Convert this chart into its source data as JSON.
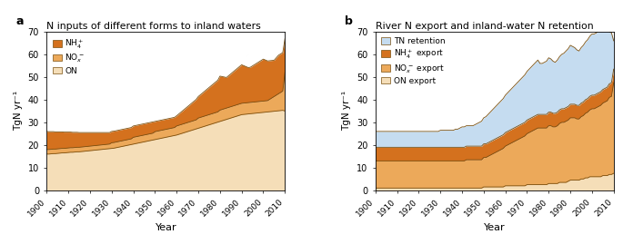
{
  "years": [
    1900,
    1901,
    1902,
    1903,
    1904,
    1905,
    1906,
    1907,
    1908,
    1909,
    1910,
    1911,
    1912,
    1913,
    1914,
    1915,
    1916,
    1917,
    1918,
    1919,
    1920,
    1921,
    1922,
    1923,
    1924,
    1925,
    1926,
    1927,
    1928,
    1929,
    1930,
    1931,
    1932,
    1933,
    1934,
    1935,
    1936,
    1937,
    1938,
    1939,
    1940,
    1941,
    1942,
    1943,
    1944,
    1945,
    1946,
    1947,
    1948,
    1949,
    1950,
    1951,
    1952,
    1953,
    1954,
    1955,
    1956,
    1957,
    1958,
    1959,
    1960,
    1961,
    1962,
    1963,
    1964,
    1965,
    1966,
    1967,
    1968,
    1969,
    1970,
    1971,
    1972,
    1973,
    1974,
    1975,
    1976,
    1977,
    1978,
    1979,
    1980,
    1981,
    1982,
    1983,
    1984,
    1985,
    1986,
    1987,
    1988,
    1989,
    1990,
    1991,
    1992,
    1993,
    1994,
    1995,
    1996,
    1997,
    1998,
    1999,
    2000,
    2001,
    2002,
    2003,
    2004,
    2005,
    2006,
    2007,
    2008,
    2009,
    2010
  ],
  "panel_a": {
    "ON": [
      16.0,
      16.0,
      16.1,
      16.2,
      16.2,
      16.3,
      16.4,
      16.5,
      16.5,
      16.6,
      16.7,
      16.8,
      16.8,
      16.9,
      17.0,
      17.0,
      17.1,
      17.2,
      17.3,
      17.4,
      17.5,
      17.6,
      17.7,
      17.8,
      17.9,
      18.0,
      18.1,
      18.2,
      18.3,
      18.4,
      18.5,
      18.6,
      18.8,
      19.0,
      19.2,
      19.4,
      19.6,
      19.8,
      20.0,
      20.2,
      20.4,
      20.6,
      20.8,
      21.0,
      21.2,
      21.4,
      21.6,
      21.8,
      22.0,
      22.2,
      22.4,
      22.6,
      22.8,
      23.0,
      23.2,
      23.4,
      23.6,
      23.8,
      24.0,
      24.2,
      24.4,
      24.7,
      25.0,
      25.3,
      25.6,
      25.9,
      26.2,
      26.5,
      26.8,
      27.1,
      27.4,
      27.7,
      28.0,
      28.3,
      28.6,
      28.9,
      29.2,
      29.5,
      29.8,
      30.1,
      30.4,
      30.7,
      31.0,
      31.3,
      31.6,
      31.9,
      32.2,
      32.5,
      32.8,
      33.1,
      33.4,
      33.5,
      33.6,
      33.7,
      33.8,
      33.9,
      34.0,
      34.1,
      34.2,
      34.3,
      34.4,
      34.5,
      34.6,
      34.7,
      34.8,
      34.9,
      35.0,
      35.1,
      35.2,
      35.3,
      35.0
    ],
    "NOx": [
      2.0,
      2.0,
      2.0,
      2.0,
      2.0,
      2.0,
      2.0,
      2.0,
      2.0,
      2.0,
      2.0,
      2.0,
      2.0,
      2.0,
      2.0,
      2.0,
      2.0,
      2.0,
      2.0,
      2.0,
      2.0,
      2.0,
      2.0,
      2.0,
      2.0,
      2.0,
      2.0,
      2.0,
      2.0,
      2.0,
      2.5,
      2.5,
      2.5,
      2.5,
      2.5,
      2.5,
      2.5,
      2.5,
      2.5,
      2.5,
      3.0,
      3.0,
      3.0,
      3.0,
      3.0,
      3.0,
      3.0,
      3.0,
      3.0,
      3.0,
      3.5,
      3.5,
      3.5,
      3.5,
      3.5,
      3.5,
      3.5,
      3.5,
      3.5,
      3.5,
      4.0,
      4.0,
      4.0,
      4.0,
      4.0,
      4.0,
      4.0,
      4.0,
      4.0,
      4.0,
      4.5,
      4.5,
      4.5,
      4.5,
      4.5,
      4.5,
      4.5,
      4.5,
      4.5,
      4.5,
      5.0,
      5.0,
      5.0,
      5.0,
      5.0,
      5.0,
      5.0,
      5.0,
      5.0,
      5.0,
      5.0,
      5.0,
      5.0,
      5.0,
      5.0,
      5.0,
      5.0,
      5.0,
      5.0,
      5.0,
      5.0,
      5.0,
      5.0,
      5.5,
      6.0,
      6.5,
      7.0,
      7.5,
      8.0,
      8.5,
      17.0
    ],
    "NH4": [
      8.0,
      7.9,
      7.8,
      7.7,
      7.6,
      7.5,
      7.4,
      7.3,
      7.2,
      7.1,
      7.0,
      6.9,
      6.8,
      6.7,
      6.6,
      6.5,
      6.4,
      6.3,
      6.2,
      6.1,
      6.0,
      5.9,
      5.8,
      5.7,
      5.6,
      5.5,
      5.4,
      5.3,
      5.2,
      5.1,
      5.0,
      5.0,
      5.0,
      5.0,
      5.0,
      5.0,
      5.0,
      5.0,
      5.0,
      5.0,
      5.0,
      5.0,
      5.0,
      5.0,
      5.0,
      5.0,
      5.0,
      5.0,
      5.0,
      5.0,
      4.5,
      4.5,
      4.5,
      4.5,
      4.5,
      4.5,
      4.5,
      4.5,
      4.5,
      4.5,
      4.5,
      5.0,
      5.5,
      6.0,
      6.5,
      7.0,
      7.5,
      8.0,
      8.5,
      9.0,
      9.5,
      10.0,
      10.5,
      11.0,
      11.5,
      12.0,
      12.5,
      13.0,
      13.5,
      14.0,
      15.0,
      14.5,
      14.0,
      13.5,
      14.0,
      14.5,
      15.0,
      15.5,
      16.0,
      16.5,
      17.0,
      16.5,
      16.0,
      15.5,
      15.5,
      16.0,
      16.5,
      17.0,
      17.5,
      18.0,
      18.5,
      18.0,
      17.5,
      17.0,
      16.5,
      16.0,
      16.5,
      17.0,
      17.0,
      17.0,
      15.0
    ]
  },
  "panel_b": {
    "ON_export": [
      1.0,
      1.0,
      1.0,
      1.0,
      1.0,
      1.0,
      1.0,
      1.0,
      1.0,
      1.0,
      1.0,
      1.0,
      1.0,
      1.0,
      1.0,
      1.0,
      1.0,
      1.0,
      1.0,
      1.0,
      1.0,
      1.0,
      1.0,
      1.0,
      1.0,
      1.0,
      1.0,
      1.0,
      1.0,
      1.0,
      1.0,
      1.0,
      1.0,
      1.0,
      1.0,
      1.0,
      1.0,
      1.0,
      1.0,
      1.0,
      1.0,
      1.0,
      1.0,
      1.0,
      1.0,
      1.0,
      1.0,
      1.0,
      1.0,
      1.0,
      1.5,
      1.5,
      1.5,
      1.5,
      1.5,
      1.5,
      1.5,
      1.5,
      1.5,
      1.5,
      2.0,
      2.0,
      2.0,
      2.0,
      2.0,
      2.0,
      2.0,
      2.0,
      2.0,
      2.0,
      2.5,
      2.5,
      2.5,
      2.5,
      2.5,
      2.5,
      2.5,
      2.5,
      2.5,
      2.5,
      3.0,
      3.0,
      3.0,
      3.0,
      3.0,
      3.5,
      3.5,
      3.5,
      3.5,
      4.0,
      4.5,
      4.5,
      4.5,
      4.5,
      4.5,
      5.0,
      5.0,
      5.5,
      5.5,
      6.0,
      6.0,
      6.0,
      6.0,
      6.0,
      6.0,
      6.5,
      6.5,
      6.5,
      7.0,
      7.0,
      7.5
    ],
    "NOx_export": [
      12.0,
      12.0,
      12.0,
      12.0,
      12.0,
      12.0,
      12.0,
      12.0,
      12.0,
      12.0,
      12.0,
      12.0,
      12.0,
      12.0,
      12.0,
      12.0,
      12.0,
      12.0,
      12.0,
      12.0,
      12.0,
      12.0,
      12.0,
      12.0,
      12.0,
      12.0,
      12.0,
      12.0,
      12.0,
      12.0,
      12.0,
      12.0,
      12.0,
      12.0,
      12.0,
      12.0,
      12.0,
      12.0,
      12.0,
      12.0,
      12.0,
      12.0,
      12.5,
      12.5,
      12.5,
      12.5,
      12.5,
      12.5,
      12.5,
      12.5,
      13.0,
      13.0,
      13.5,
      14.0,
      14.5,
      15.0,
      15.5,
      16.0,
      16.5,
      17.0,
      17.5,
      18.0,
      18.5,
      19.0,
      19.5,
      20.0,
      20.5,
      21.0,
      21.5,
      22.0,
      22.5,
      23.0,
      23.5,
      24.0,
      24.5,
      25.0,
      25.0,
      25.0,
      25.0,
      25.0,
      25.5,
      25.5,
      25.0,
      25.0,
      25.5,
      26.0,
      26.5,
      26.5,
      27.0,
      27.0,
      27.5,
      27.5,
      27.5,
      27.0,
      27.0,
      27.5,
      28.0,
      28.5,
      29.0,
      29.5,
      30.0,
      30.0,
      30.5,
      31.0,
      31.5,
      32.0,
      32.5,
      33.0,
      34.0,
      34.5,
      40.0
    ],
    "NH4_export": [
      6.0,
      6.0,
      6.0,
      6.0,
      6.0,
      6.0,
      6.0,
      6.0,
      6.0,
      6.0,
      6.0,
      6.0,
      6.0,
      6.0,
      6.0,
      6.0,
      6.0,
      6.0,
      6.0,
      6.0,
      6.0,
      6.0,
      6.0,
      6.0,
      6.0,
      6.0,
      6.0,
      6.0,
      6.0,
      6.0,
      6.0,
      6.0,
      6.0,
      6.0,
      6.0,
      6.0,
      6.0,
      6.0,
      6.0,
      6.0,
      6.0,
      6.0,
      6.0,
      6.0,
      6.0,
      6.0,
      6.0,
      6.0,
      6.0,
      6.0,
      6.0,
      6.0,
      6.0,
      6.0,
      6.0,
      6.0,
      6.0,
      6.0,
      6.0,
      6.0,
      6.0,
      6.0,
      6.0,
      6.0,
      6.0,
      6.0,
      6.0,
      6.0,
      6.0,
      6.0,
      6.0,
      6.0,
      6.0,
      6.0,
      6.0,
      6.0,
      6.0,
      6.0,
      6.0,
      6.0,
      6.0,
      6.0,
      6.0,
      6.0,
      6.0,
      6.0,
      6.0,
      6.0,
      6.0,
      6.0,
      6.0,
      6.0,
      6.0,
      6.0,
      6.0,
      6.0,
      6.0,
      6.0,
      6.0,
      6.0,
      6.0,
      6.0,
      6.0,
      6.0,
      6.0,
      6.0,
      6.0,
      6.0,
      6.0,
      6.0,
      6.0
    ],
    "TN_retention": [
      7.0,
      7.0,
      7.0,
      7.0,
      7.0,
      7.0,
      7.0,
      7.0,
      7.0,
      7.0,
      7.0,
      7.0,
      7.0,
      7.0,
      7.0,
      7.0,
      7.0,
      7.0,
      7.0,
      7.0,
      7.0,
      7.0,
      7.0,
      7.0,
      7.0,
      7.0,
      7.0,
      7.0,
      7.0,
      7.0,
      7.5,
      7.5,
      7.5,
      7.5,
      7.5,
      7.5,
      7.5,
      8.0,
      8.0,
      8.5,
      9.0,
      9.0,
      9.0,
      9.0,
      9.0,
      9.0,
      9.5,
      10.0,
      10.5,
      11.0,
      11.5,
      12.0,
      12.5,
      13.0,
      13.5,
      14.0,
      14.5,
      15.0,
      15.5,
      16.0,
      16.5,
      17.0,
      17.5,
      18.0,
      18.5,
      19.0,
      19.5,
      20.0,
      20.5,
      21.0,
      21.5,
      22.0,
      22.5,
      23.0,
      23.5,
      24.0,
      22.5,
      22.5,
      23.0,
      23.5,
      24.0,
      23.5,
      23.0,
      22.5,
      23.0,
      23.5,
      24.0,
      24.5,
      25.0,
      25.5,
      26.0,
      25.5,
      25.0,
      24.5,
      24.0,
      24.5,
      25.0,
      25.5,
      26.0,
      26.5,
      27.0,
      27.0,
      27.0,
      27.5,
      28.0,
      28.5,
      29.0,
      29.5,
      23.0,
      22.0,
      12.5
    ]
  },
  "colors": {
    "NH4": "#D4711E",
    "NOx": "#ECA95A",
    "ON": "#F5DEB8",
    "TN_retention": "#C5DCF0",
    "NH4_export": "#D4711E",
    "NOx_export": "#ECA95A",
    "ON_export": "#F5DEB8"
  },
  "line_color": "#7A5010",
  "title_a": "N inputs of different forms to inland waters",
  "title_b": "River N export and inland-water N retention",
  "ylabel": "TgN yr⁻¹",
  "xlabel": "Year",
  "ylim": [
    0,
    70
  ],
  "yticks": [
    0,
    10,
    20,
    30,
    40,
    50,
    60,
    70
  ],
  "xticks": [
    1900,
    1910,
    1920,
    1930,
    1940,
    1950,
    1960,
    1970,
    1980,
    1990,
    2000,
    2010
  ],
  "panel_label_a": "a",
  "panel_label_b": "b"
}
